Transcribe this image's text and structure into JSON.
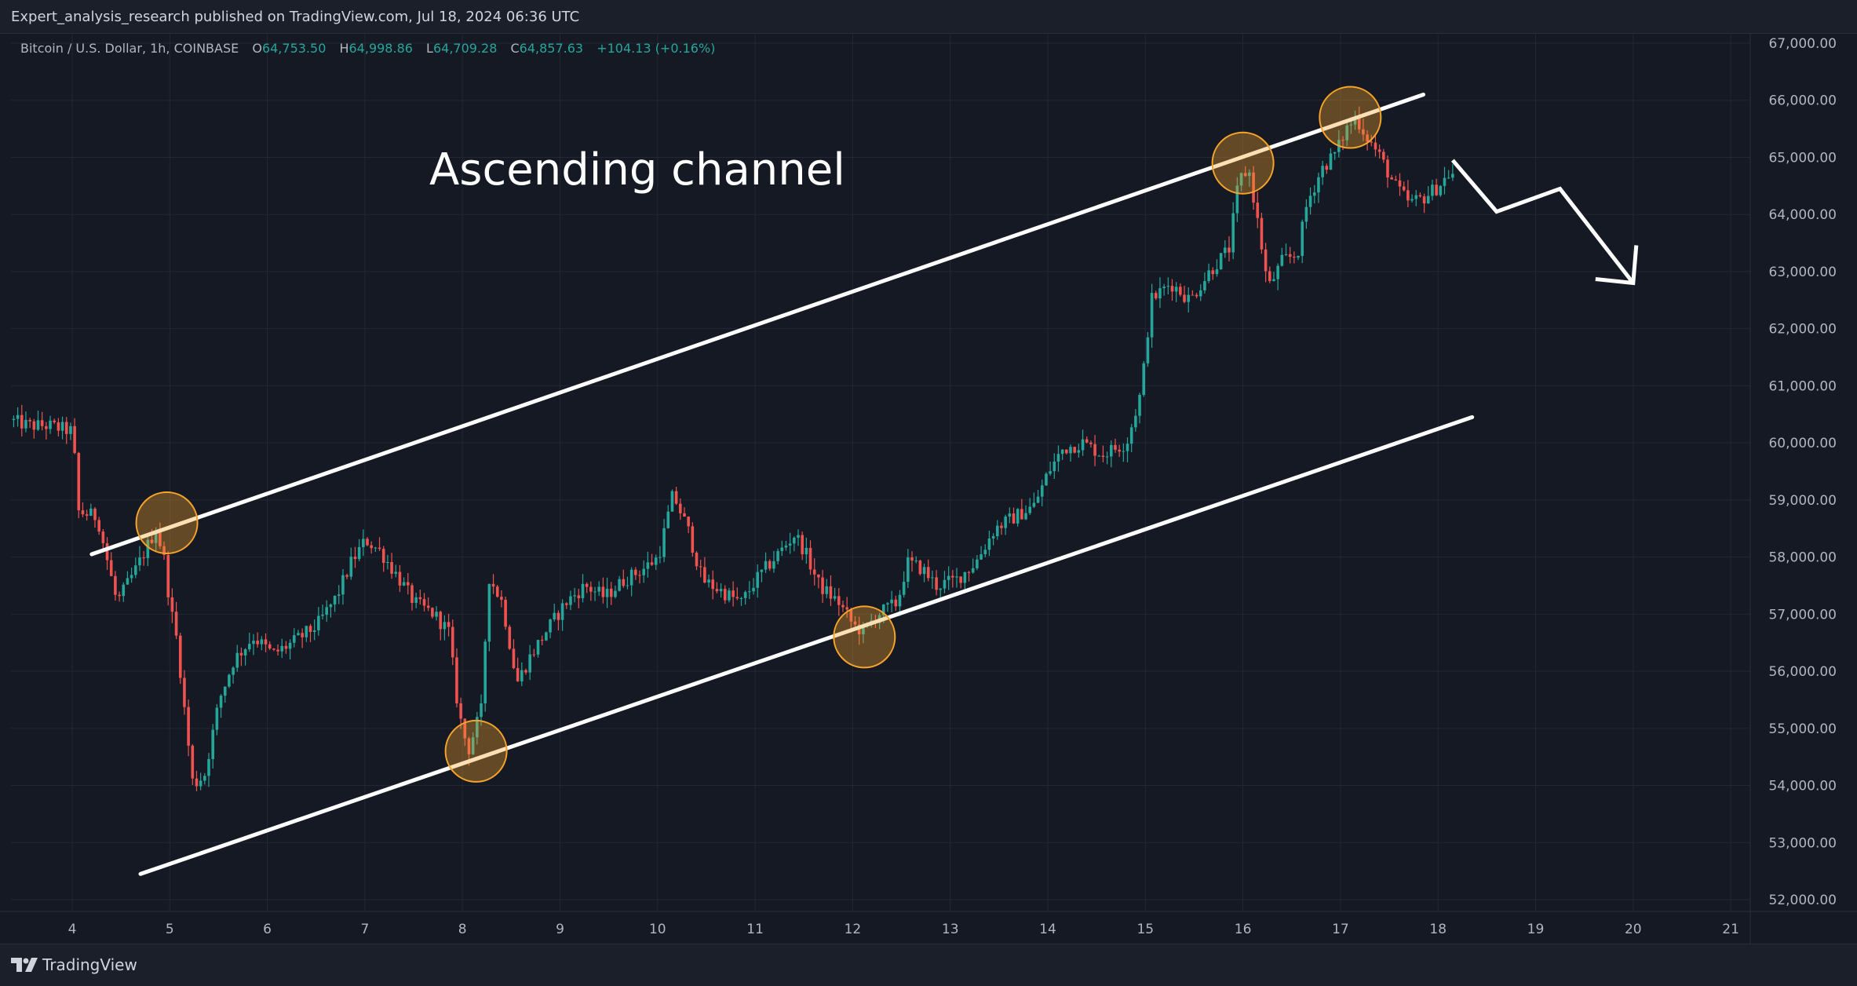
{
  "header": {
    "publisher_line": "Expert_analysis_research published on TradingView.com, Jul 18, 2024 06:36 UTC"
  },
  "legend": {
    "symbol": "Bitcoin / U.S. Dollar, 1h, COINBASE",
    "open_label": "O",
    "open": "64,753.50",
    "high_label": "H",
    "high": "64,998.86",
    "low_label": "L",
    "low": "64,709.28",
    "close_label": "C",
    "close": "64,857.63",
    "change": "+104.13 (+0.16%)"
  },
  "footer": {
    "logo_text": "TradingView"
  },
  "colors": {
    "background": "#151924",
    "up": "#26a69a",
    "down": "#ef5350",
    "grid": "#232735",
    "annotation": "#ffffff",
    "highlight_circle": "#f7a42a"
  },
  "chart_data": {
    "type": "candlestick",
    "title": "Ascending channel",
    "x_axis": {
      "tick_labels": [
        "4",
        "5",
        "6",
        "7",
        "8",
        "9",
        "10",
        "11",
        "12",
        "13",
        "14",
        "15",
        "16",
        "17",
        "18",
        "19",
        "20",
        "21"
      ]
    },
    "y_axis": {
      "ylim": [
        51800,
        67400
      ],
      "tick_labels": [
        "67,000.00",
        "66,000.00",
        "65,000.00",
        "64,000.00",
        "63,000.00",
        "62,000.00",
        "61,000.00",
        "60,000.00",
        "59,000.00",
        "58,000.00",
        "57,000.00",
        "56,000.00",
        "55,000.00",
        "54,000.00",
        "53,000.00",
        "52,000.00"
      ],
      "tick_values": [
        67000,
        66000,
        65000,
        64000,
        63000,
        62000,
        61000,
        60000,
        59000,
        58000,
        57000,
        56000,
        55000,
        54000,
        53000,
        52000
      ],
      "position": "right"
    },
    "price_path": [
      [
        3.4,
        60400
      ],
      [
        3.6,
        60300
      ],
      [
        3.8,
        60300
      ],
      [
        4.05,
        60200
      ],
      [
        4.1,
        58800
      ],
      [
        4.3,
        58700
      ],
      [
        4.5,
        57200
      ],
      [
        4.7,
        57800
      ],
      [
        4.9,
        58500
      ],
      [
        4.98,
        58000
      ],
      [
        5.05,
        57100
      ],
      [
        5.12,
        56500
      ],
      [
        5.2,
        55200
      ],
      [
        5.28,
        54000
      ],
      [
        5.4,
        54200
      ],
      [
        5.55,
        55500
      ],
      [
        5.7,
        56200
      ],
      [
        5.9,
        56600
      ],
      [
        6.1,
        56300
      ],
      [
        6.3,
        56500
      ],
      [
        6.55,
        56800
      ],
      [
        6.75,
        57300
      ],
      [
        6.9,
        57900
      ],
      [
        7.05,
        58300
      ],
      [
        7.2,
        58100
      ],
      [
        7.4,
        57600
      ],
      [
        7.55,
        57200
      ],
      [
        7.75,
        57000
      ],
      [
        7.9,
        56700
      ],
      [
        8.0,
        55300
      ],
      [
        8.1,
        54600
      ],
      [
        8.25,
        55400
      ],
      [
        8.3,
        57700
      ],
      [
        8.45,
        57200
      ],
      [
        8.6,
        55800
      ],
      [
        8.75,
        56300
      ],
      [
        8.9,
        56700
      ],
      [
        9.1,
        57200
      ],
      [
        9.3,
        57500
      ],
      [
        9.5,
        57300
      ],
      [
        9.7,
        57600
      ],
      [
        9.9,
        57800
      ],
      [
        10.05,
        58000
      ],
      [
        10.2,
        59100
      ],
      [
        10.35,
        58500
      ],
      [
        10.5,
        57600
      ],
      [
        10.7,
        57400
      ],
      [
        10.9,
        57200
      ],
      [
        11.05,
        57600
      ],
      [
        11.25,
        58000
      ],
      [
        11.45,
        58400
      ],
      [
        11.55,
        58100
      ],
      [
        11.7,
        57500
      ],
      [
        11.9,
        57200
      ],
      [
        12.05,
        56800
      ],
      [
        12.15,
        56700
      ],
      [
        12.3,
        57000
      ],
      [
        12.5,
        57200
      ],
      [
        12.6,
        57900
      ],
      [
        12.75,
        57800
      ],
      [
        12.9,
        57500
      ],
      [
        13.1,
        57600
      ],
      [
        13.3,
        57900
      ],
      [
        13.5,
        58500
      ],
      [
        13.7,
        58700
      ],
      [
        13.9,
        58900
      ],
      [
        14.05,
        59500
      ],
      [
        14.2,
        59900
      ],
      [
        14.4,
        60000
      ],
      [
        14.6,
        59800
      ],
      [
        14.85,
        60000
      ],
      [
        15.0,
        60900
      ],
      [
        15.1,
        62500
      ],
      [
        15.3,
        62800
      ],
      [
        15.5,
        62500
      ],
      [
        15.7,
        63000
      ],
      [
        15.9,
        63400
      ],
      [
        16.0,
        64600
      ],
      [
        16.1,
        64800
      ],
      [
        16.2,
        63800
      ],
      [
        16.3,
        62700
      ],
      [
        16.45,
        63200
      ],
      [
        16.6,
        63300
      ],
      [
        16.7,
        64200
      ],
      [
        16.85,
        64800
      ],
      [
        17.0,
        65100
      ],
      [
        17.1,
        65500
      ],
      [
        17.2,
        65700
      ],
      [
        17.3,
        65400
      ],
      [
        17.45,
        65000
      ],
      [
        17.6,
        64500
      ],
      [
        17.75,
        64200
      ],
      [
        17.9,
        64300
      ],
      [
        18.05,
        64500
      ],
      [
        18.15,
        64700
      ]
    ],
    "annotations": {
      "label": "Ascending channel",
      "upper_channel": [
        [
          4.2,
          58050
        ],
        [
          17.85,
          66100
        ]
      ],
      "lower_channel": [
        [
          4.7,
          52450
        ],
        [
          18.35,
          60450
        ]
      ],
      "projection": [
        [
          18.15,
          64950
        ],
        [
          18.6,
          64050
        ],
        [
          19.25,
          64450
        ],
        [
          20.0,
          62800
        ]
      ],
      "touch_points": [
        [
          4.97,
          58600
        ],
        [
          8.14,
          54600
        ],
        [
          12.12,
          56600
        ],
        [
          16.0,
          64900
        ],
        [
          17.1,
          65700
        ]
      ]
    }
  }
}
